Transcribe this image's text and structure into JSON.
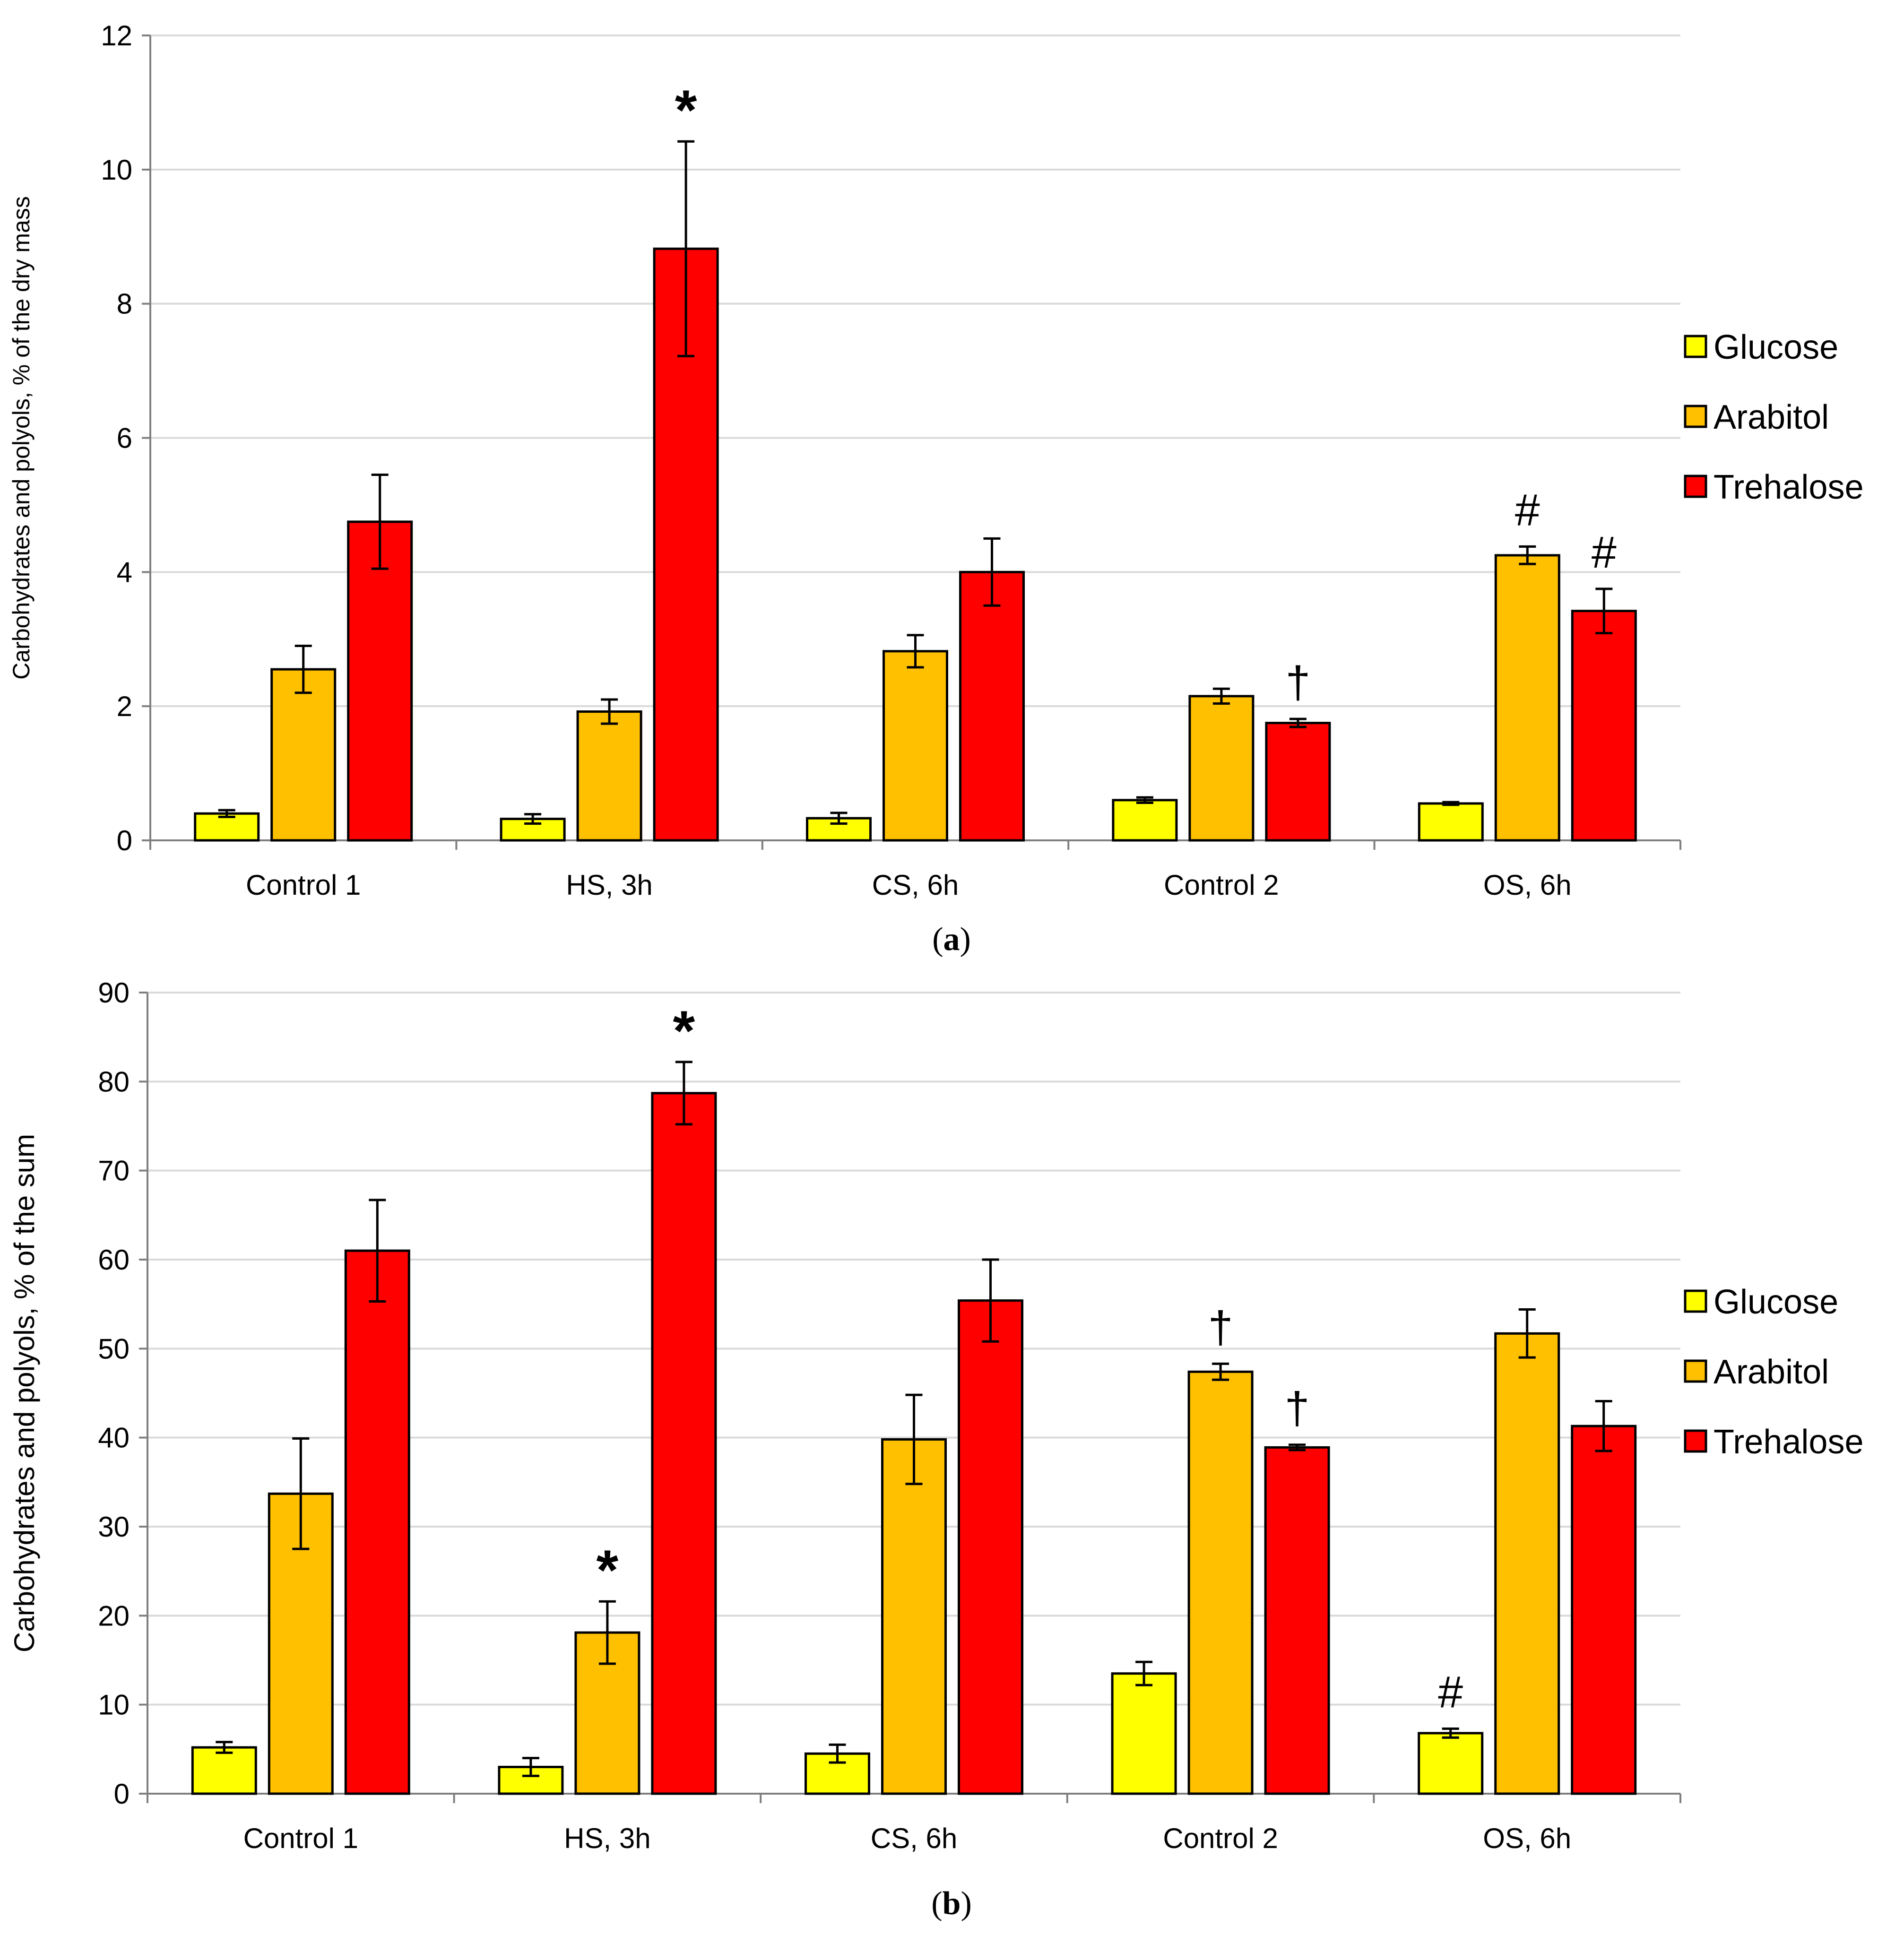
{
  "chart_data": [
    {
      "id": "a",
      "type": "bar",
      "caption_letter": "a",
      "ylabel": "Carbohydrates  and polyols, % of the dry mass",
      "xlabel": "",
      "ylim": [
        0,
        12
      ],
      "yticks": [
        0,
        2,
        4,
        6,
        8,
        10,
        12
      ],
      "categories": [
        "Control 1",
        "HS, 3h",
        "CS, 6h",
        "Control 2",
        "OS, 6h"
      ],
      "series": [
        {
          "name": "Glucose",
          "color": "#ffff00",
          "values": [
            0.4,
            0.32,
            0.33,
            0.6,
            0.55
          ],
          "errors": [
            0.05,
            0.07,
            0.08,
            0.04,
            0.02
          ]
        },
        {
          "name": "Arabitol",
          "color": "#ffc000",
          "values": [
            2.55,
            1.92,
            2.82,
            2.15,
            4.25
          ],
          "errors": [
            0.35,
            0.18,
            0.24,
            0.11,
            0.13
          ]
        },
        {
          "name": "Trehalose",
          "color": "#ff0000",
          "values": [
            4.75,
            8.82,
            4.0,
            1.75,
            3.42
          ],
          "errors": [
            0.7,
            1.6,
            0.5,
            0.06,
            0.33
          ]
        }
      ],
      "annotations": [
        {
          "category": 1,
          "series": 2,
          "text": "*"
        },
        {
          "category": 3,
          "series": 2,
          "text": "†"
        },
        {
          "category": 4,
          "series": 1,
          "text": "#"
        },
        {
          "category": 4,
          "series": 2,
          "text": "#"
        }
      ],
      "legend": {
        "position": "right",
        "entries": [
          "Glucose",
          "Arabitol",
          "Trehalose"
        ]
      }
    },
    {
      "id": "b",
      "type": "bar",
      "caption_letter": "b",
      "ylabel": "Carbohydrates  and polyols, % of the sum",
      "xlabel": "",
      "ylim": [
        0,
        90
      ],
      "yticks": [
        0,
        10,
        20,
        30,
        40,
        50,
        60,
        70,
        80,
        90
      ],
      "categories": [
        "Control 1",
        "HS, 3h",
        "CS, 6h",
        "Control 2",
        "OS, 6h"
      ],
      "series": [
        {
          "name": "Glucose",
          "color": "#ffff00",
          "values": [
            5.2,
            3.0,
            4.5,
            13.5,
            6.8
          ],
          "errors": [
            0.6,
            1.0,
            1.0,
            1.3,
            0.5
          ]
        },
        {
          "name": "Arabitol",
          "color": "#ffc000",
          "values": [
            33.7,
            18.1,
            39.8,
            47.4,
            51.7
          ],
          "errors": [
            6.2,
            3.5,
            5.0,
            0.9,
            2.7
          ]
        },
        {
          "name": "Trehalose",
          "color": "#ff0000",
          "values": [
            61.0,
            78.7,
            55.4,
            38.9,
            41.3
          ],
          "errors": [
            5.7,
            3.5,
            4.6,
            0.3,
            2.8
          ]
        }
      ],
      "annotations": [
        {
          "category": 1,
          "series": 1,
          "text": "*"
        },
        {
          "category": 1,
          "series": 2,
          "text": "*"
        },
        {
          "category": 3,
          "series": 1,
          "text": "†"
        },
        {
          "category": 3,
          "series": 2,
          "text": "†"
        },
        {
          "category": 4,
          "series": 0,
          "text": "#"
        }
      ],
      "legend": {
        "position": "right",
        "entries": [
          "Glucose",
          "Arabitol",
          "Trehalose"
        ]
      }
    }
  ]
}
